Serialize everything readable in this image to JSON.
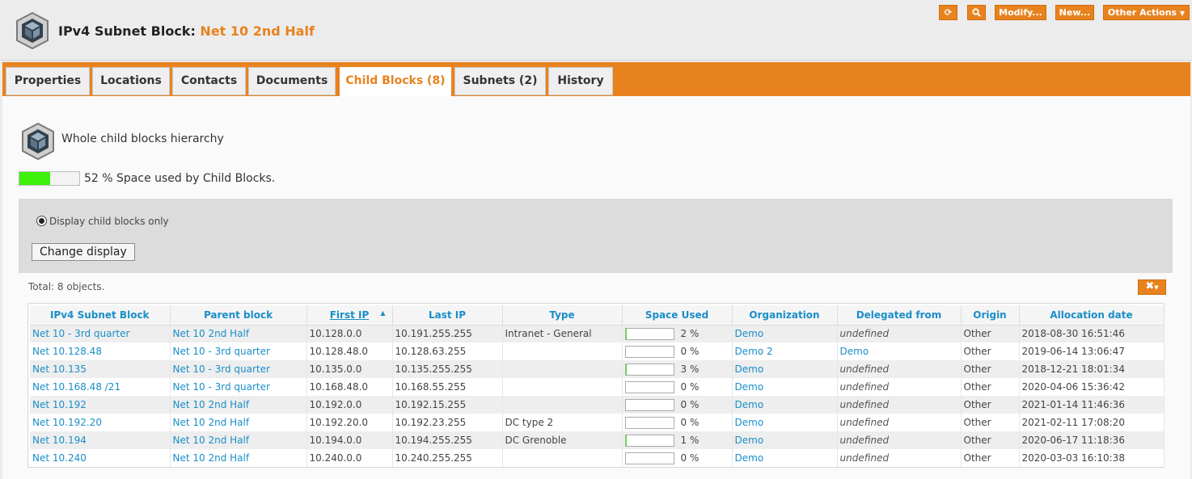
{
  "header": {
    "title_prefix": "IPv4 Subnet Block:",
    "title_name": "Net 10 2nd Half",
    "buttons": {
      "refresh_icon": "refresh-icon",
      "search_icon": "search-icon",
      "modify": "Modify...",
      "new": "New...",
      "other_actions": "Other Actions"
    }
  },
  "tabs": [
    {
      "label": "Properties"
    },
    {
      "label": "Locations"
    },
    {
      "label": "Contacts"
    },
    {
      "label": "Documents"
    },
    {
      "label": "Child Blocks (8)",
      "active": true
    },
    {
      "label": "Subnets (2)"
    },
    {
      "label": "History"
    }
  ],
  "section": {
    "title": "Whole child blocks hierarchy",
    "usage_percent": 52,
    "usage_text": "52 % Space used by Child Blocks.",
    "radio_label": "Display child blocks only",
    "change_button": "Change display"
  },
  "table": {
    "total_text": "Total: 8 objects.",
    "columns": [
      "IPv4 Subnet Block",
      "Parent block",
      "First IP",
      "Last IP",
      "Type",
      "Space Used",
      "Organization",
      "Delegated from",
      "Origin",
      "Allocation date"
    ],
    "rows": [
      {
        "block": "Net 10 - 3rd quarter",
        "parent": "Net 10 2nd Half",
        "first_ip": "10.128.0.0",
        "last_ip": "10.191.255.255",
        "type": "Intranet - General",
        "used": 2,
        "used_text": "2 %",
        "org": "Demo",
        "delegated": "undefined",
        "origin": "Other",
        "date": "2018-08-30 16:51:46"
      },
      {
        "block": "Net 10.128.48",
        "parent": "Net 10 - 3rd quarter",
        "first_ip": "10.128.48.0",
        "last_ip": "10.128.63.255",
        "type": "",
        "used": 0,
        "used_text": "0 %",
        "org": "Demo 2",
        "delegated": "Demo",
        "origin": "Other",
        "date": "2019-06-14 13:06:47"
      },
      {
        "block": "Net 10.135",
        "parent": "Net 10 - 3rd quarter",
        "first_ip": "10.135.0.0",
        "last_ip": "10.135.255.255",
        "type": "",
        "used": 3,
        "used_text": "3 %",
        "org": "Demo",
        "delegated": "undefined",
        "origin": "Other",
        "date": "2018-12-21 18:01:34"
      },
      {
        "block": "Net 10.168.48 /21",
        "parent": "Net 10 - 3rd quarter",
        "first_ip": "10.168.48.0",
        "last_ip": "10.168.55.255",
        "type": "",
        "used": 0,
        "used_text": "0 %",
        "org": "Demo",
        "delegated": "undefined",
        "origin": "Other",
        "date": "2020-04-06 15:36:42"
      },
      {
        "block": "Net 10.192",
        "parent": "Net 10 2nd Half",
        "first_ip": "10.192.0.0",
        "last_ip": "10.192.15.255",
        "type": "",
        "used": 0,
        "used_text": "0 %",
        "org": "Demo",
        "delegated": "undefined",
        "origin": "Other",
        "date": "2021-01-14 11:46:36"
      },
      {
        "block": "Net 10.192.20",
        "parent": "Net 10 2nd Half",
        "first_ip": "10.192.20.0",
        "last_ip": "10.192.23.255",
        "type": "DC type 2",
        "used": 0,
        "used_text": "0 %",
        "org": "Demo",
        "delegated": "undefined",
        "origin": "Other",
        "date": "2021-02-11 17:08:20"
      },
      {
        "block": "Net 10.194",
        "parent": "Net 10 2nd Half",
        "first_ip": "10.194.0.0",
        "last_ip": "10.194.255.255",
        "type": "DC Grenoble",
        "used": 1,
        "used_text": "1 %",
        "org": "Demo",
        "delegated": "undefined",
        "origin": "Other",
        "date": "2020-06-17 11:18:36"
      },
      {
        "block": "Net 10.240",
        "parent": "Net 10 2nd Half",
        "first_ip": "10.240.0.0",
        "last_ip": "10.240.255.255",
        "type": "",
        "used": 0,
        "used_text": "0 %",
        "org": "Demo",
        "delegated": "undefined",
        "origin": "Other",
        "date": "2020-03-03 16:10:38"
      }
    ]
  },
  "colors": {
    "accent": "#e8821e",
    "link": "#1a8ec8",
    "usage": "#3cf20a"
  }
}
